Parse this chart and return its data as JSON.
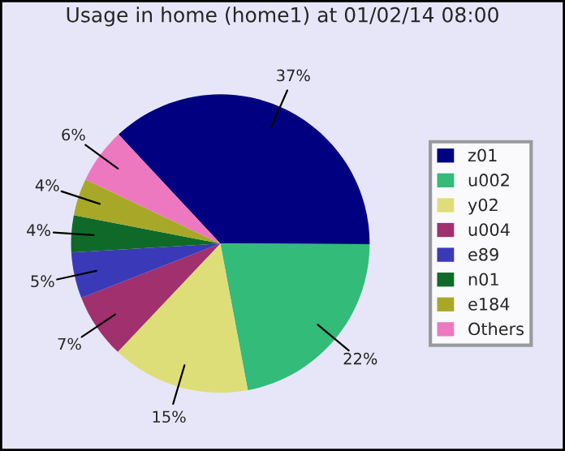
{
  "chart_data": {
    "type": "pie",
    "title": "Usage in home (home1) at 01/02/14 08:00",
    "categories": [
      "z01",
      "u002",
      "y02",
      "u004",
      "e89",
      "n01",
      "e184",
      "Others"
    ],
    "values": [
      37,
      22,
      15,
      7,
      5,
      4,
      4,
      6
    ],
    "value_labels": [
      "37%",
      "22%",
      "15%",
      "7%",
      "5%",
      "4%",
      "4%",
      "6%"
    ],
    "colors": [
      "#000080",
      "#33bb7a",
      "#dede78",
      "#a0306e",
      "#3a3ab8",
      "#0f6a2a",
      "#a8a828",
      "#ee78c0"
    ],
    "legend": "right"
  }
}
